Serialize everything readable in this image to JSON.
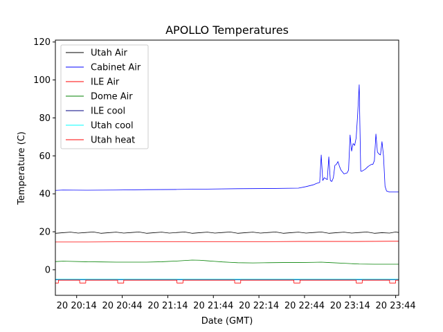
{
  "chart_data": {
    "type": "line",
    "title": "APOLLO Temperatures",
    "xlabel": "Date (GMT)",
    "ylabel": "Temperature (C)",
    "x_unit": "minutes since 20:00 GMT",
    "xlim": [
      0,
      226
    ],
    "ylim": [
      -13.5,
      121
    ],
    "x_ticks": [
      {
        "value": 14,
        "label": "20 20:14"
      },
      {
        "value": 44,
        "label": "20 20:44"
      },
      {
        "value": 74,
        "label": "20 21:14"
      },
      {
        "value": 104,
        "label": "20 21:44"
      },
      {
        "value": 134,
        "label": "20 22:14"
      },
      {
        "value": 164,
        "label": "20 22:44"
      },
      {
        "value": 194,
        "label": "20 23:14"
      },
      {
        "value": 224,
        "label": "20 23:44"
      }
    ],
    "y_ticks": [
      0,
      20,
      40,
      60,
      80,
      100,
      120
    ],
    "legend_position": "top-left",
    "series": [
      {
        "name": "Utah Air",
        "color": "#000000",
        "x": [
          0,
          5,
          10,
          15,
          20,
          25,
          30,
          35,
          40,
          45,
          50,
          55,
          60,
          65,
          70,
          75,
          80,
          85,
          90,
          95,
          100,
          105,
          110,
          115,
          120,
          125,
          130,
          135,
          140,
          145,
          150,
          155,
          160,
          165,
          170,
          175,
          180,
          185,
          190,
          195,
          200,
          205,
          210,
          215,
          220,
          224,
          226
        ],
        "values": [
          19.2,
          19.5,
          19.8,
          19.3,
          19.6,
          19.9,
          19.2,
          19.5,
          19.8,
          19.3,
          19.6,
          19.9,
          19.2,
          19.5,
          19.8,
          19.3,
          19.6,
          19.9,
          19.2,
          19.5,
          19.8,
          19.3,
          19.6,
          19.9,
          19.2,
          19.5,
          19.8,
          19.3,
          19.6,
          19.9,
          19.2,
          19.5,
          19.8,
          19.3,
          19.6,
          19.9,
          19.2,
          19.5,
          19.8,
          19.3,
          19.6,
          19.9,
          19.2,
          19.5,
          19.3,
          19.9,
          19.6
        ]
      },
      {
        "name": "Cabinet Air",
        "color": "#0000ff",
        "x": [
          0,
          5,
          20,
          40,
          60,
          80,
          100,
          120,
          140,
          160,
          165,
          170,
          172,
          174,
          175,
          176,
          177,
          178,
          179,
          180,
          181,
          182,
          183,
          184,
          185,
          186,
          187,
          188,
          190,
          192,
          193,
          194,
          195,
          196,
          197,
          198,
          199,
          200,
          201,
          202,
          204,
          206,
          208,
          209,
          210,
          211,
          212,
          213,
          214,
          215,
          216,
          217,
          218,
          219,
          220,
          222,
          224,
          226
        ],
        "values": [
          41.8,
          42.0,
          41.9,
          42.0,
          42.2,
          42.3,
          42.5,
          42.7,
          42.8,
          43.0,
          43.8,
          44.8,
          45.5,
          46.0,
          60.5,
          47.0,
          48.5,
          48.0,
          47.5,
          59.5,
          47.0,
          46.5,
          48.5,
          55.0,
          55.5,
          57.0,
          54.5,
          52.5,
          50.5,
          51.0,
          52.5,
          71.0,
          62.5,
          66.5,
          65.5,
          69.5,
          82.0,
          97.5,
          52.0,
          52.0,
          53.0,
          54.5,
          55.5,
          55.5,
          57.5,
          71.5,
          62.0,
          61.0,
          60.5,
          67.5,
          60.0,
          44.0,
          41.5,
          41.2,
          41.0,
          41.0,
          41.0,
          41.0
        ]
      },
      {
        "name": "ILE Air",
        "color": "#ff0000",
        "x": [
          0,
          20,
          40,
          60,
          80,
          100,
          120,
          140,
          160,
          180,
          200,
          220,
          226
        ],
        "values": [
          14.6,
          14.6,
          14.7,
          14.7,
          14.7,
          14.8,
          14.8,
          14.8,
          14.9,
          14.9,
          14.9,
          15.0,
          15.0
        ]
      },
      {
        "name": "Dome Air",
        "color": "#008000",
        "x": [
          0,
          5,
          10,
          20,
          30,
          40,
          50,
          60,
          70,
          80,
          90,
          95,
          100,
          105,
          110,
          115,
          120,
          130,
          140,
          150,
          160,
          170,
          175,
          180,
          190,
          200,
          210,
          220,
          226
        ],
        "values": [
          4.3,
          4.5,
          4.4,
          4.2,
          4.1,
          4.0,
          4.0,
          4.0,
          4.2,
          4.6,
          5.1,
          5.0,
          4.7,
          4.4,
          4.1,
          3.9,
          3.7,
          3.6,
          3.7,
          3.8,
          3.8,
          3.9,
          4.0,
          3.8,
          3.4,
          3.0,
          2.9,
          2.9,
          2.9
        ]
      },
      {
        "name": "ILE cool",
        "color": "#000080",
        "x": [
          0,
          226
        ],
        "values": [
          -5.3,
          -5.3
        ]
      },
      {
        "name": "Utah cool",
        "color": "#00ffff",
        "x": [
          0,
          226
        ],
        "values": [
          -5.0,
          -5.0
        ]
      },
      {
        "name": "Utah heat",
        "color": "#ff0000",
        "x": [
          0,
          2,
          2,
          16,
          16,
          20,
          20,
          41,
          41,
          45,
          45,
          80,
          80,
          84,
          84,
          118,
          118,
          122,
          122,
          157,
          157,
          161,
          161,
          198,
          198,
          202,
          202,
          220,
          220,
          224,
          224,
          226
        ],
        "values": [
          -7.0,
          -7.0,
          -5.5,
          -5.5,
          -7.0,
          -7.0,
          -5.5,
          -5.5,
          -7.0,
          -7.0,
          -5.5,
          -5.5,
          -7.0,
          -7.0,
          -5.5,
          -5.5,
          -7.0,
          -7.0,
          -5.5,
          -5.5,
          -7.0,
          -7.0,
          -5.5,
          -5.5,
          -7.0,
          -7.0,
          -5.5,
          -5.5,
          -7.0,
          -7.0,
          -5.5,
          -5.5
        ]
      }
    ]
  }
}
